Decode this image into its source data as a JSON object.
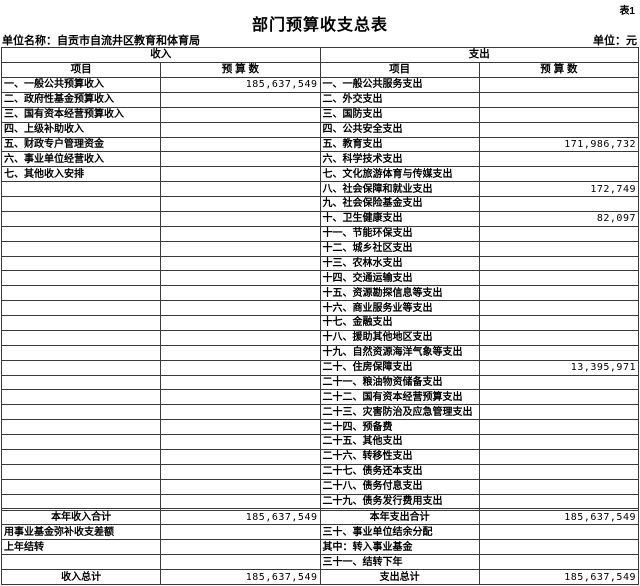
{
  "sheet_label": "表1",
  "title": "部门预算收支总表",
  "unit_name": "单位名称：自贡市自流井区教育和体育局",
  "unit": "单位：元",
  "table": {
    "group_headers": {
      "income": "收入",
      "expense": "支出"
    },
    "col_headers": {
      "item": "项目",
      "budget": "预 算 数"
    },
    "rows": [
      {
        "i": "一、一般公共预算收入",
        "iv": "185,637,549",
        "e": "一、一般公共服务支出",
        "ev": ""
      },
      {
        "i": "二、政府性基金预算收入",
        "iv": "",
        "e": "二、外交支出",
        "ev": ""
      },
      {
        "i": "三、国有资本经营预算收入",
        "iv": "",
        "e": "三、国防支出",
        "ev": ""
      },
      {
        "i": "四、上级补助收入",
        "iv": "",
        "e": "四、公共安全支出",
        "ev": ""
      },
      {
        "i": "五、财政专户管理资金",
        "iv": "",
        "e": "五、教育支出",
        "ev": "171,986,732"
      },
      {
        "i": "六、事业单位经营收入",
        "iv": "",
        "e": "六、科学技术支出",
        "ev": ""
      },
      {
        "i": "七、其他收入安排",
        "iv": "",
        "e": "七、文化旅游体育与传媒支出",
        "ev": ""
      },
      {
        "i": "",
        "iv": "",
        "e": "八、社会保障和就业支出",
        "ev": "172,749"
      },
      {
        "i": "",
        "iv": "",
        "e": "九、社会保险基金支出",
        "ev": ""
      },
      {
        "i": "",
        "iv": "",
        "e": "十、卫生健康支出",
        "ev": "82,097"
      },
      {
        "i": "",
        "iv": "",
        "e": "十一、节能环保支出",
        "ev": ""
      },
      {
        "i": "",
        "iv": "",
        "e": "十二、城乡社区支出",
        "ev": ""
      },
      {
        "i": "",
        "iv": "",
        "e": "十三、农林水支出",
        "ev": ""
      },
      {
        "i": "",
        "iv": "",
        "e": "十四、交通运输支出",
        "ev": ""
      },
      {
        "i": "",
        "iv": "",
        "e": "十五、资源勘探信息等支出",
        "ev": ""
      },
      {
        "i": "",
        "iv": "",
        "e": "十六、商业服务业等支出",
        "ev": ""
      },
      {
        "i": "",
        "iv": "",
        "e": "十七、金融支出",
        "ev": ""
      },
      {
        "i": "",
        "iv": "",
        "e": "十八、援助其他地区支出",
        "ev": ""
      },
      {
        "i": "",
        "iv": "",
        "e": "十九、自然资源海洋气象等支出",
        "ev": ""
      },
      {
        "i": "",
        "iv": "",
        "e": "二十、住房保障支出",
        "ev": "13,395,971"
      },
      {
        "i": "",
        "iv": "",
        "e": "二十一、粮油物资储备支出",
        "ev": ""
      },
      {
        "i": "",
        "iv": "",
        "e": "二十二、国有资本经营预算支出",
        "ev": ""
      },
      {
        "i": "",
        "iv": "",
        "e": "二十三、灾害防治及应急管理支出",
        "ev": ""
      },
      {
        "i": "",
        "iv": "",
        "e": "二十四、预备费",
        "ev": ""
      },
      {
        "i": "",
        "iv": "",
        "e": "二十五、其他支出",
        "ev": ""
      },
      {
        "i": "",
        "iv": "",
        "e": "二十六、转移性支出",
        "ev": ""
      },
      {
        "i": "",
        "iv": "",
        "e": "二十七、债务还本支出",
        "ev": ""
      },
      {
        "i": "",
        "iv": "",
        "e": "二十八、债务付息支出",
        "ev": ""
      },
      {
        "i": "",
        "iv": "",
        "e": "二十九、债务发行费用支出",
        "ev": ""
      },
      {
        "i": "",
        "iv": "",
        "e": "",
        "ev": ""
      },
      {
        "i": "本年收入合计",
        "iv": "185,637,549",
        "e": "本年支出合计",
        "ev": "185,637,549",
        "ic": true,
        "ec": true
      },
      {
        "i": "用事业基金弥补收支差额",
        "iv": "",
        "e": "三十、事业单位结余分配",
        "ev": ""
      },
      {
        "i": "上年结转",
        "iv": "",
        "e": "其中：转入事业基金",
        "ev": ""
      },
      {
        "i": "",
        "iv": "",
        "e": "三十一、结转下年",
        "ev": ""
      },
      {
        "i": "收入总计",
        "iv": "185,637,549",
        "e": "支出总计",
        "ev": "185,637,549",
        "ic": true,
        "ec": true
      }
    ]
  }
}
